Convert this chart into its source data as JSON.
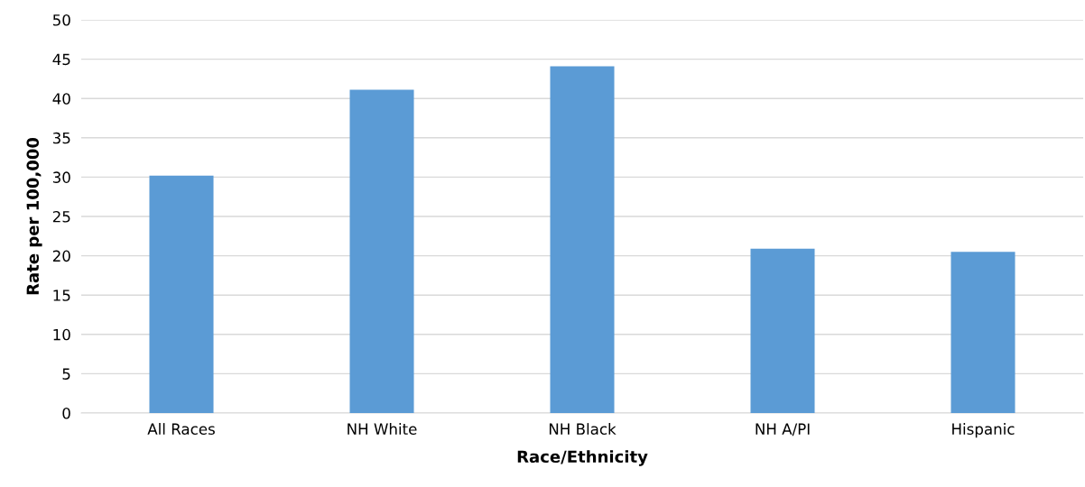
{
  "chart_data": {
    "type": "bar",
    "xlabel": "Race/Ethnicity",
    "ylabel": "Rate per 100,000",
    "categories": [
      "All Races",
      "NH White",
      "NH Black",
      "NH A/PI",
      "Hispanic"
    ],
    "values": [
      30.2,
      41.1,
      44.1,
      20.9,
      20.5
    ],
    "color": "#5b9bd5",
    "ylim": [
      0,
      50
    ],
    "yticks": [
      0,
      5,
      10,
      15,
      20,
      25,
      30,
      35,
      40,
      45,
      50
    ],
    "grid": "y",
    "legend": false
  }
}
